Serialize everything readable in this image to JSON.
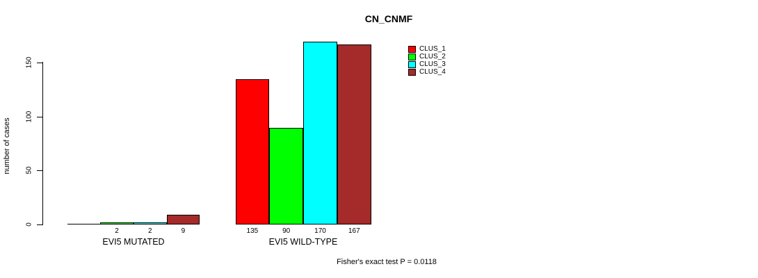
{
  "chart_data": {
    "type": "bar",
    "title": "CN_CNMF",
    "xlabel": "",
    "ylabel": "number of cases",
    "ylim": [
      0,
      175
    ],
    "yticks": [
      0,
      50,
      100,
      150
    ],
    "ytick_labels": [
      "0",
      "50",
      "100",
      "150"
    ],
    "grid": false,
    "legend_position": "top-right-inside",
    "categories": [
      "EVI5 MUTATED",
      "EVI5 WILD-TYPE"
    ],
    "series": [
      {
        "name": "CLUS_1",
        "color": "#ff0000",
        "values": [
          0,
          135
        ]
      },
      {
        "name": "CLUS_2",
        "color": "#00ff00",
        "values": [
          2,
          90
        ]
      },
      {
        "name": "CLUS_3",
        "color": "#00ffff",
        "values": [
          2,
          170
        ]
      },
      {
        "name": "CLUS_4",
        "color": "#a52a2a",
        "values": [
          9,
          167
        ]
      }
    ],
    "groups": [
      {
        "label": "EVI5 MUTATED",
        "values": [
          0,
          2,
          2,
          9
        ],
        "value_labels": [
          "",
          "2",
          "2",
          "9"
        ]
      },
      {
        "label": "EVI5 WILD-TYPE",
        "values": [
          135,
          90,
          170,
          167
        ],
        "value_labels": [
          "135",
          "90",
          "170",
          "167"
        ]
      }
    ],
    "bar_border_color": "#000000",
    "annotation": "Fisher's exact test P = 0.0118"
  }
}
